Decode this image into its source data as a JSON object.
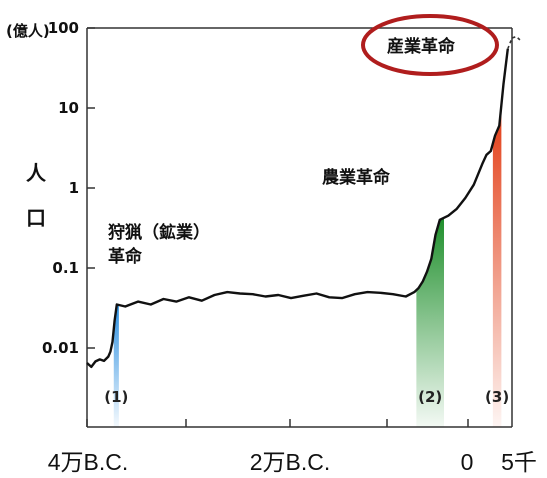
{
  "chart_data": {
    "type": "line",
    "title": "",
    "y_unit": "(億人)",
    "ylabel": "人口",
    "y_scale": "log",
    "ylim": [
      0.001,
      100
    ],
    "y_ticks": [
      {
        "value": 100,
        "label": "100"
      },
      {
        "value": 10,
        "label": "10"
      },
      {
        "value": 1,
        "label": "1"
      },
      {
        "value": 0.1,
        "label": "0.1"
      },
      {
        "value": 0.01,
        "label": "0.01"
      }
    ],
    "x_tick_labels": [
      "4万B.C.",
      "2万B.C.",
      "0",
      "5千"
    ],
    "series": [
      {
        "name": "",
        "points": [
          [
            0.0,
            0.0065
          ],
          [
            0.01,
            0.0058
          ],
          [
            0.02,
            0.0068
          ],
          [
            0.03,
            0.0072
          ],
          [
            0.04,
            0.0069
          ],
          [
            0.05,
            0.0078
          ],
          [
            0.055,
            0.009
          ],
          [
            0.06,
            0.012
          ],
          [
            0.065,
            0.022
          ],
          [
            0.07,
            0.035
          ],
          [
            0.09,
            0.033
          ],
          [
            0.12,
            0.038
          ],
          [
            0.15,
            0.035
          ],
          [
            0.18,
            0.041
          ],
          [
            0.21,
            0.038
          ],
          [
            0.24,
            0.043
          ],
          [
            0.27,
            0.039
          ],
          [
            0.3,
            0.046
          ],
          [
            0.33,
            0.05
          ],
          [
            0.36,
            0.048
          ],
          [
            0.39,
            0.047
          ],
          [
            0.42,
            0.044
          ],
          [
            0.45,
            0.046
          ],
          [
            0.48,
            0.042
          ],
          [
            0.51,
            0.045
          ],
          [
            0.54,
            0.048
          ],
          [
            0.57,
            0.043
          ],
          [
            0.6,
            0.042
          ],
          [
            0.63,
            0.047
          ],
          [
            0.66,
            0.05
          ],
          [
            0.69,
            0.049
          ],
          [
            0.72,
            0.047
          ],
          [
            0.75,
            0.044
          ],
          [
            0.77,
            0.05
          ],
          [
            0.78,
            0.056
          ],
          [
            0.79,
            0.068
          ],
          [
            0.8,
            0.09
          ],
          [
            0.81,
            0.13
          ],
          [
            0.82,
            0.26
          ],
          [
            0.83,
            0.4
          ],
          [
            0.85,
            0.45
          ],
          [
            0.87,
            0.55
          ],
          [
            0.89,
            0.75
          ],
          [
            0.91,
            1.1
          ],
          [
            0.93,
            2.0
          ],
          [
            0.94,
            2.6
          ],
          [
            0.95,
            2.9
          ],
          [
            0.96,
            4.5
          ],
          [
            0.97,
            6.0
          ],
          [
            0.98,
            20.0
          ],
          [
            0.99,
            55.0
          ]
        ]
      }
    ],
    "dashed_projection": [
      [
        0.99,
        55.0
      ],
      [
        1.0,
        75.0
      ],
      [
        1.01,
        78.0
      ],
      [
        1.02,
        70.0
      ]
    ],
    "highlight_bands": [
      {
        "marker": "(1)",
        "x_start": 0.063,
        "x_end": 0.075,
        "color": "#2c8fe0"
      },
      {
        "marker": "(2)",
        "x_start": 0.775,
        "x_end": 0.84,
        "color": "#1f8f2c"
      },
      {
        "marker": "(3)",
        "x_start": 0.955,
        "x_end": 0.975,
        "color": "#e23a12"
      }
    ],
    "annotations": [
      {
        "text": "狩猟（鉱業）"
      },
      {
        "text": "革命"
      },
      {
        "text": "農業革命"
      },
      {
        "text": "産業革命",
        "circled": true,
        "circle_color": "#b01d1d"
      }
    ],
    "grid": false,
    "legend": "none"
  }
}
